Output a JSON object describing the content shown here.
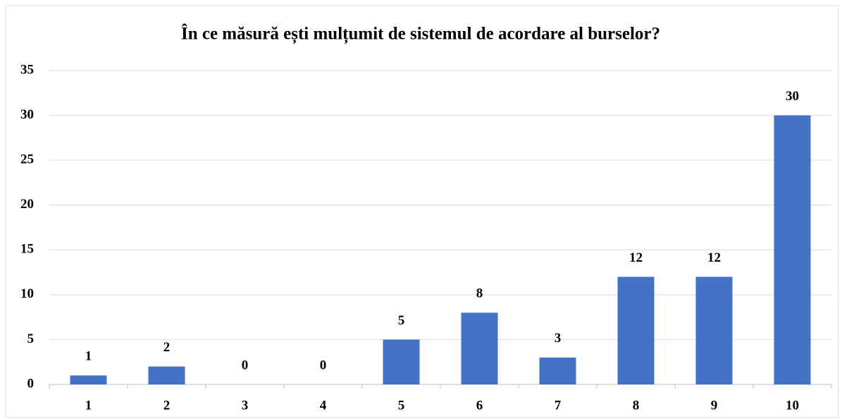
{
  "chart_data": {
    "type": "bar",
    "title": "În ce măsură ești mulțumit de sistemul de acordare al burselor?",
    "categories": [
      "1",
      "2",
      "3",
      "4",
      "5",
      "6",
      "7",
      "8",
      "9",
      "10"
    ],
    "values": [
      1,
      2,
      0,
      0,
      5,
      8,
      3,
      12,
      12,
      30
    ],
    "color": "#4472c4",
    "ylim": [
      0,
      35
    ],
    "yticks": [
      0,
      5,
      10,
      15,
      20,
      25,
      30,
      35
    ],
    "grid": true,
    "data_labels": true
  }
}
